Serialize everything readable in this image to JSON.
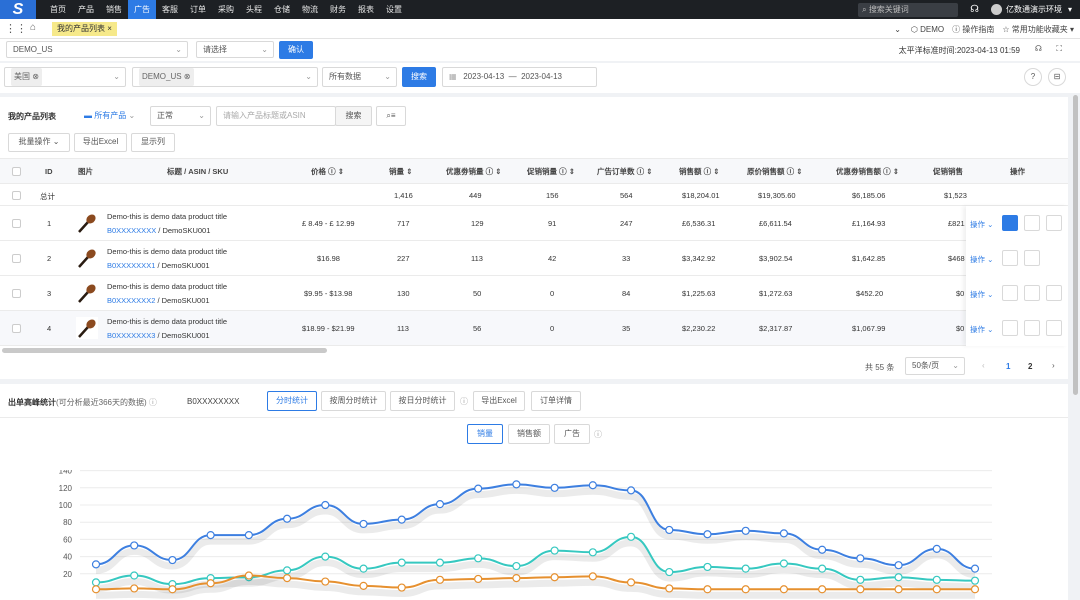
{
  "topnav": {
    "logo": "S",
    "menu": [
      "首页",
      "产品",
      "销售",
      "广告",
      "客服",
      "订单",
      "采购",
      "头程",
      "仓储",
      "物流",
      "财务",
      "报表",
      "设置"
    ],
    "active_index": 3,
    "search_placeholder": "搜索关键词",
    "user": "亿数通演示环境"
  },
  "tabbar": {
    "tab_label": "我的产品列表",
    "demo": "DEMO",
    "guide": "操作指南",
    "favorites": "常用功能收藏夹"
  },
  "filter1": {
    "account": "DEMO_US",
    "select_placeholder": "请选择",
    "confirm": "确认",
    "time_label": "太平洋标准时间:",
    "time_value": "2023-04-13 01:59"
  },
  "filter2": {
    "country_tag": "美国",
    "store_tag": "DEMO_US",
    "data_scope": "所有数据",
    "search": "搜索",
    "date_from": "2023-04-13",
    "date_sep": "—",
    "date_to": "2023-04-13"
  },
  "list": {
    "title": "我的产品列表",
    "folder": "所有产品",
    "status": "正常",
    "search_placeholder": "请输入产品标题或ASIN",
    "search_btn": "搜索",
    "batch": "批量操作",
    "export": "导出Excel",
    "show_cols": "显示列"
  },
  "table": {
    "headers": {
      "id": "ID",
      "image": "图片",
      "title": "标题 / ASIN / SKU",
      "price": "价格",
      "sales": "销量",
      "promo_sales": "优惠劵销量",
      "discount_sales": "促销销量",
      "ad_orders": "广告订单数",
      "revenue": "销售额",
      "orig_revenue": "原价销售额",
      "promo_revenue": "优惠劵销售额",
      "discount_revenue": "促销销售",
      "ops": "操作"
    },
    "total": {
      "label": "总计",
      "sales": "1,416",
      "promo_sales": "449",
      "discount_sales": "156",
      "ad_orders": "564",
      "revenue": "$18,204.01",
      "orig_revenue": "$19,305.60",
      "promo_revenue": "$6,185.06",
      "discount_revenue": "$1,523"
    },
    "rows": [
      {
        "id": "1",
        "title": "Demo-this is demo data product title",
        "asin": "B0XXXXXXXX",
        "sku": " / DemoSKU001",
        "price": "£ 8.49 - £ 12.99",
        "sales": "717",
        "promo_sales": "129",
        "discount_sales": "91",
        "ad_orders": "247",
        "revenue": "£6,536.31",
        "orig_revenue": "£6,611.54",
        "promo_revenue": "£1,164.93",
        "discount_revenue": "£821",
        "op": "操作"
      },
      {
        "id": "2",
        "title": "Demo-this is demo data product title",
        "asin": "B0XXXXXXX1",
        "sku": " / DemoSKU001",
        "price": "$16.98",
        "sales": "227",
        "promo_sales": "113",
        "discount_sales": "42",
        "ad_orders": "33",
        "revenue": "$3,342.92",
        "orig_revenue": "$3,902.54",
        "promo_revenue": "$1,642.85",
        "discount_revenue": "$468",
        "op": "操作"
      },
      {
        "id": "3",
        "title": "Demo-this is demo data product title",
        "asin": "B0XXXXXXX2",
        "sku": " / DemoSKU001",
        "price": "$9.95 - $13.98",
        "sales": "130",
        "promo_sales": "50",
        "discount_sales": "0",
        "ad_orders": "84",
        "revenue": "$1,225.63",
        "orig_revenue": "$1,272.63",
        "promo_revenue": "$452.20",
        "discount_revenue": "$0",
        "op": "操作"
      },
      {
        "id": "4",
        "title": "Demo-this is demo data product title",
        "asin": "B0XXXXXXX3",
        "sku": " / DemoSKU001",
        "price": "$18.99 - $21.99",
        "sales": "113",
        "promo_sales": "56",
        "discount_sales": "0",
        "ad_orders": "35",
        "revenue": "$2,230.22",
        "orig_revenue": "$2,317.87",
        "promo_revenue": "$1,067.99",
        "discount_revenue": "$0",
        "op": "操作"
      }
    ]
  },
  "pager": {
    "total": "共 55 条",
    "page_size": "50条/页",
    "pages": [
      "1",
      "2"
    ]
  },
  "peak": {
    "title": "出单高峰统计",
    "note": "(可分析最近366天的数据)",
    "asin": "B0XXXXXXXX",
    "tabs": [
      "分时统计",
      "按周分时统计",
      "按日分时统计"
    ],
    "export": "导出Excel",
    "order_detail": "订单详情",
    "metric_tabs": [
      "销量",
      "销售额",
      "广告"
    ]
  },
  "chart_data": {
    "type": "line",
    "yticks": [
      "140",
      "120",
      "100",
      "80",
      "60",
      "40",
      "20"
    ],
    "ylim": [
      0,
      140
    ],
    "series": [
      {
        "color": "#3d7fe0",
        "values": [
          31,
          53,
          36,
          65,
          65,
          84,
          100,
          78,
          83,
          101,
          119,
          124,
          120,
          123,
          117,
          71,
          66,
          70,
          67,
          48,
          38,
          30,
          49,
          26
        ]
      },
      {
        "color": "#36c8c0",
        "values": [
          10,
          18,
          8,
          15,
          16,
          24,
          40,
          26,
          33,
          33,
          38,
          29,
          47,
          45,
          63,
          22,
          28,
          26,
          32,
          26,
          13,
          16,
          13,
          12
        ]
      },
      {
        "color": "#e6902f",
        "values": [
          2,
          3,
          2,
          9,
          18,
          15,
          11,
          6,
          4,
          13,
          14,
          15,
          16,
          17,
          10,
          3,
          2,
          2,
          2,
          2,
          2,
          2,
          2,
          2
        ]
      }
    ]
  }
}
